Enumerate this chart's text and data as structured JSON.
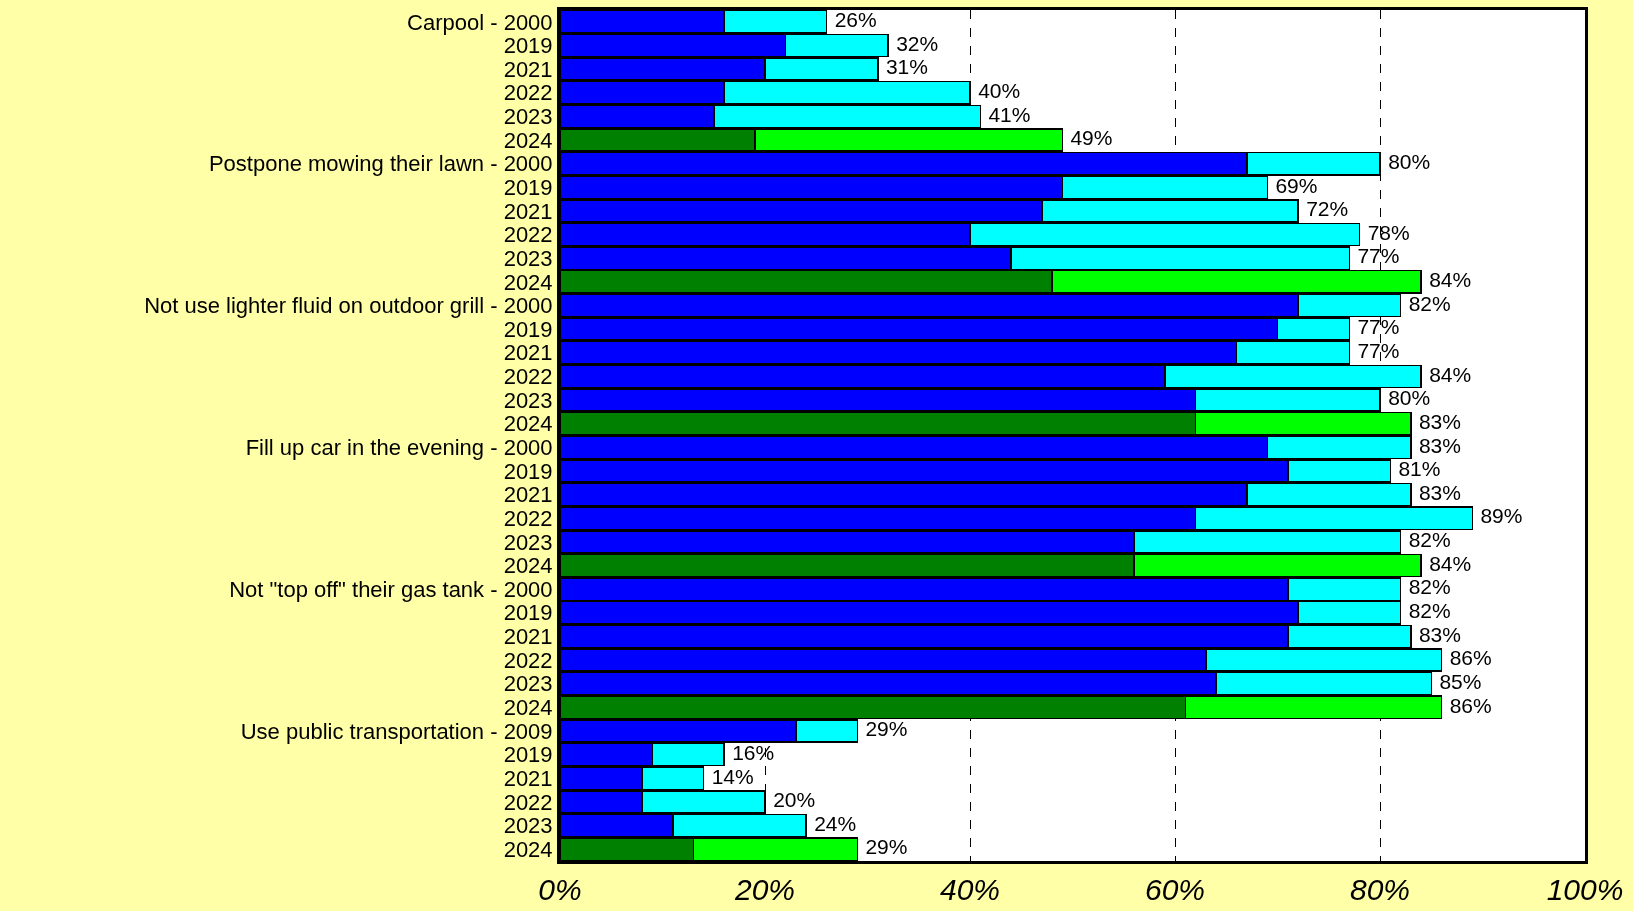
{
  "chart_data": {
    "type": "bar",
    "orientation": "horizontal",
    "stacked": true,
    "categories": [
      "Carpool - 2000",
      "2019",
      "2021",
      "2022",
      "2023",
      "2024",
      "Postpone mowing their lawn - 2000",
      "2019",
      "2021",
      "2022",
      "2023",
      "2024",
      "Not use lighter fluid on outdoor grill - 2000",
      "2019",
      "2021",
      "2022",
      "2023",
      "2024",
      "Fill up car in the evening - 2000",
      "2019",
      "2021",
      "2022",
      "2023",
      "2024",
      "Not \"top off\" their gas tank - 2000",
      "2019",
      "2021",
      "2022",
      "2023",
      "2024",
      "Use public transportation - 2009",
      "2019",
      "2021",
      "2022",
      "2023",
      "2024"
    ],
    "series": [
      {
        "values": [
          16,
          22,
          20,
          16,
          15,
          19,
          67,
          49,
          47,
          40,
          44,
          48,
          72,
          70,
          66,
          59,
          62,
          62,
          69,
          71,
          67,
          62,
          56,
          56,
          71,
          72,
          71,
          63,
          64,
          61,
          23,
          9,
          8,
          8,
          11,
          13
        ],
        "colors": [
          "#0000ff",
          "#0000ff",
          "#0000ff",
          "#0000ff",
          "#0000ff",
          "#008000",
          "#0000ff",
          "#0000ff",
          "#0000ff",
          "#0000ff",
          "#0000ff",
          "#008000",
          "#0000ff",
          "#0000ff",
          "#0000ff",
          "#0000ff",
          "#0000ff",
          "#008000",
          "#0000ff",
          "#0000ff",
          "#0000ff",
          "#0000ff",
          "#0000ff",
          "#008000",
          "#0000ff",
          "#0000ff",
          "#0000ff",
          "#0000ff",
          "#0000ff",
          "#008000",
          "#0000ff",
          "#0000ff",
          "#0000ff",
          "#0000ff",
          "#0000ff",
          "#008000"
        ]
      },
      {
        "values": [
          10,
          10,
          11,
          24,
          26,
          30,
          13,
          20,
          25,
          38,
          33,
          36,
          10,
          7,
          11,
          25,
          18,
          21,
          14,
          10,
          16,
          27,
          26,
          28,
          11,
          10,
          12,
          23,
          21,
          25,
          6,
          7,
          6,
          12,
          13,
          16
        ],
        "colors": [
          "#00ffff",
          "#00ffff",
          "#00ffff",
          "#00ffff",
          "#00ffff",
          "#00ff00",
          "#00ffff",
          "#00ffff",
          "#00ffff",
          "#00ffff",
          "#00ffff",
          "#00ff00",
          "#00ffff",
          "#00ffff",
          "#00ffff",
          "#00ffff",
          "#00ffff",
          "#00ff00",
          "#00ffff",
          "#00ffff",
          "#00ffff",
          "#00ffff",
          "#00ffff",
          "#00ff00",
          "#00ffff",
          "#00ffff",
          "#00ffff",
          "#00ffff",
          "#00ffff",
          "#00ff00",
          "#00ffff",
          "#00ffff",
          "#00ffff",
          "#00ffff",
          "#00ffff",
          "#00ff00"
        ]
      }
    ],
    "totals": [
      "26%",
      "32%",
      "31%",
      "40%",
      "41%",
      "49%",
      "80%",
      "69%",
      "72%",
      "78%",
      "77%",
      "84%",
      "82%",
      "77%",
      "77%",
      "84%",
      "80%",
      "83%",
      "83%",
      "81%",
      "83%",
      "89%",
      "82%",
      "84%",
      "82%",
      "82%",
      "83%",
      "86%",
      "85%",
      "86%",
      "29%",
      "16%",
      "14%",
      "20%",
      "24%",
      "29%"
    ],
    "xlim": [
      0,
      100
    ],
    "xticks": [
      {
        "value": 0,
        "label": "0%"
      },
      {
        "value": 20,
        "label": "20%"
      },
      {
        "value": 40,
        "label": "40%"
      },
      {
        "value": 60,
        "label": "60%"
      },
      {
        "value": 80,
        "label": "80%"
      },
      {
        "value": 100,
        "label": "100%"
      }
    ],
    "grid": "x"
  }
}
